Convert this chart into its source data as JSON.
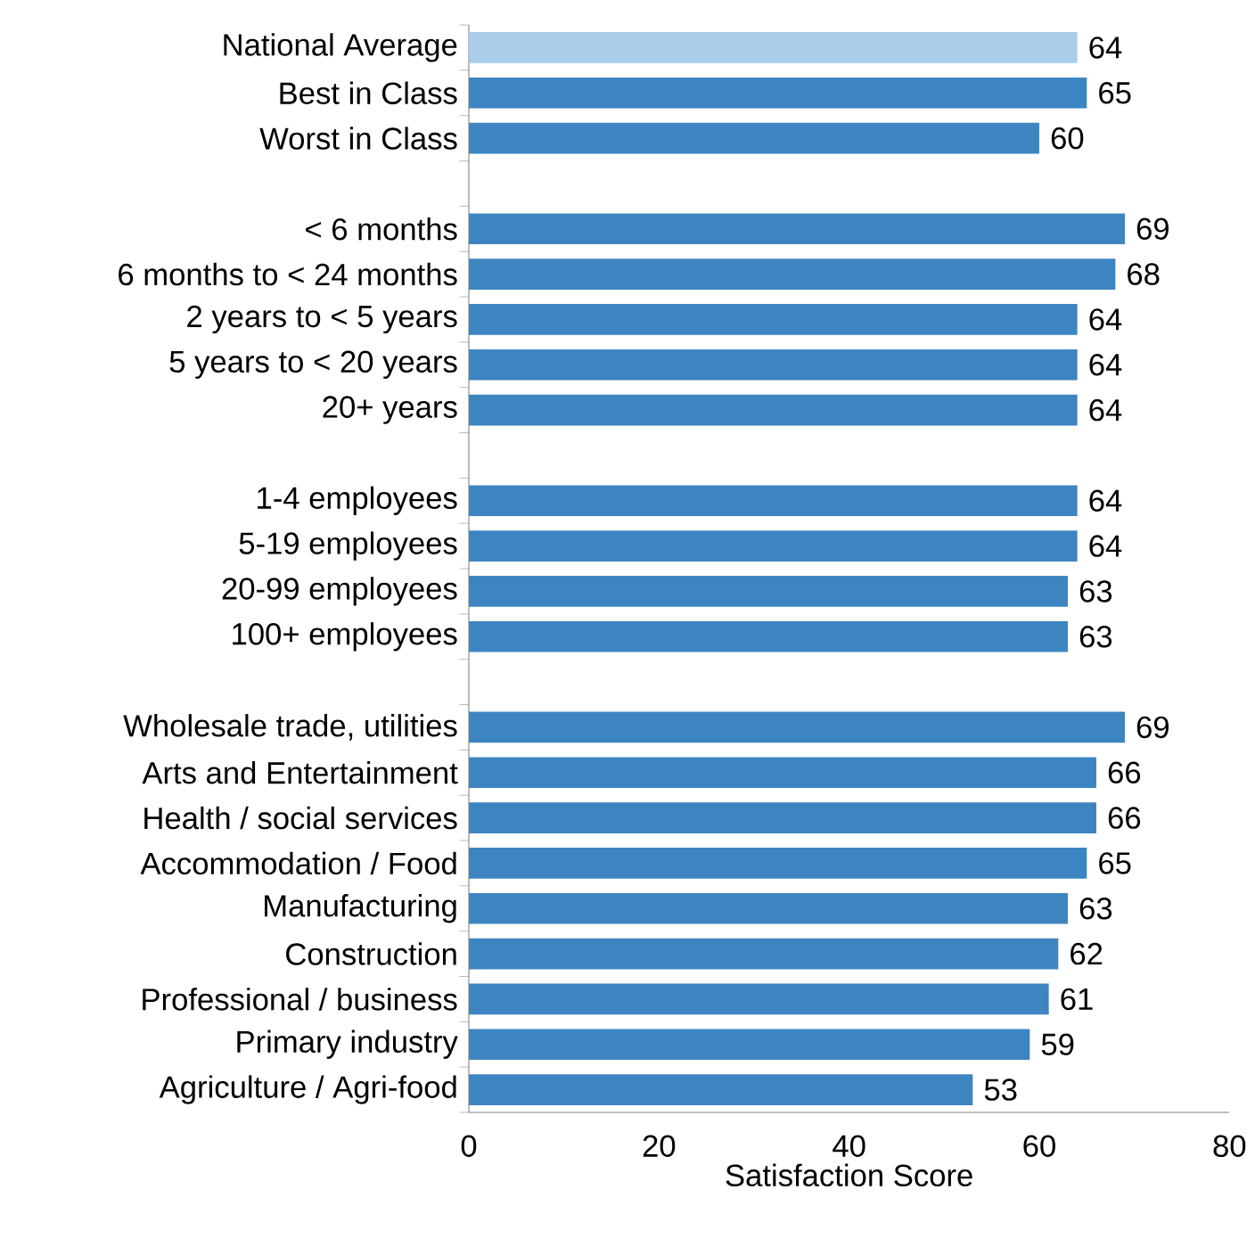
{
  "chart_data": {
    "type": "bar",
    "orientation": "horizontal",
    "xlabel": "Satisfaction Score",
    "categories": [
      "National Average",
      "Best in Class",
      "Worst in Class",
      null,
      "< 6 months",
      "6 months to < 24 months",
      "2 years to < 5 years",
      "5 years to < 20 years",
      "20+ years",
      null,
      "1-4 employees",
      "5-19 employees",
      "20-99 employees",
      "100+ employees",
      null,
      "Wholesale trade, utilities",
      "Arts and Entertainment",
      "Health / social services",
      "Accommodation / Food",
      "Manufacturing",
      "Construction",
      "Professional / business",
      "Primary industry",
      "Agriculture / Agri-food"
    ],
    "values": [
      64,
      65,
      60,
      null,
      69,
      68,
      64,
      64,
      64,
      null,
      64,
      64,
      63,
      63,
      null,
      69,
      66,
      66,
      65,
      63,
      62,
      61,
      59,
      53
    ],
    "colors": [
      "#a9cce8",
      "#3d85c1",
      "#3d85c1",
      null,
      "#3d85c1",
      "#3d85c1",
      "#3d85c1",
      "#3d85c1",
      "#3d85c1",
      null,
      "#3d85c1",
      "#3d85c1",
      "#3d85c1",
      "#3d85c1",
      null,
      "#3d85c1",
      "#3d85c1",
      "#3d85c1",
      "#3d85c1",
      "#3d85c1",
      "#3d85c1",
      "#3d85c1",
      "#3d85c1",
      "#3d85c1"
    ],
    "xlim": [
      0,
      80
    ],
    "xticks": [
      0,
      20,
      40,
      60,
      80
    ],
    "data_labels": true
  }
}
